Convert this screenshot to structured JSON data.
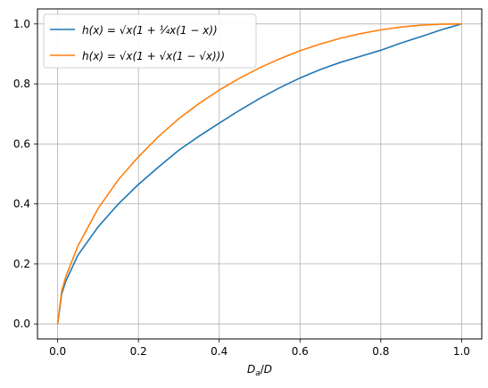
{
  "chart_data": {
    "type": "line",
    "xlabel": "Da/D",
    "ylabel": "",
    "xlim": [
      -0.05,
      1.05
    ],
    "ylim": [
      -0.05,
      1.05
    ],
    "xticks": [
      "0.0",
      "0.2",
      "0.4",
      "0.6",
      "0.8",
      "1.0"
    ],
    "yticks": [
      "0.0",
      "0.2",
      "0.4",
      "0.6",
      "0.8",
      "1.0"
    ],
    "grid": true,
    "legend_position": "top-left",
    "series": [
      {
        "name": "h(x) = √x(1 + ¼x(1 − x))",
        "color": "#1f77b4",
        "x": [
          0.0,
          0.01,
          0.02,
          0.05,
          0.1,
          0.15,
          0.2,
          0.25,
          0.3,
          0.35,
          0.4,
          0.45,
          0.5,
          0.55,
          0.6,
          0.65,
          0.7,
          0.75,
          0.8,
          0.85,
          0.9,
          0.95,
          1.0
        ],
        "y": [
          0.0,
          0.1002,
          0.1421,
          0.2289,
          0.3233,
          0.3995,
          0.4651,
          0.5234,
          0.5792,
          0.6258,
          0.6693,
          0.7118,
          0.7513,
          0.7874,
          0.8197,
          0.8479,
          0.8718,
          0.892,
          0.9123,
          0.9364,
          0.958,
          0.9804,
          1.0
        ]
      },
      {
        "name": "h(x) = √x(1 + √x(1 − √x)))",
        "color": "#ff7f0e",
        "x": [
          0.0,
          0.01,
          0.02,
          0.05,
          0.1,
          0.15,
          0.2,
          0.25,
          0.3,
          0.35,
          0.4,
          0.45,
          0.5,
          0.55,
          0.6,
          0.65,
          0.7,
          0.75,
          0.8,
          0.85,
          0.9,
          0.95,
          1.0
        ],
        "y": [
          0.0,
          0.109,
          0.1567,
          0.2594,
          0.3846,
          0.4802,
          0.5572,
          0.625,
          0.6843,
          0.7347,
          0.7795,
          0.8186,
          0.8536,
          0.8838,
          0.9105,
          0.933,
          0.9522,
          0.9677,
          0.9801,
          0.9896,
          0.9958,
          0.9992,
          1.0
        ]
      }
    ]
  }
}
